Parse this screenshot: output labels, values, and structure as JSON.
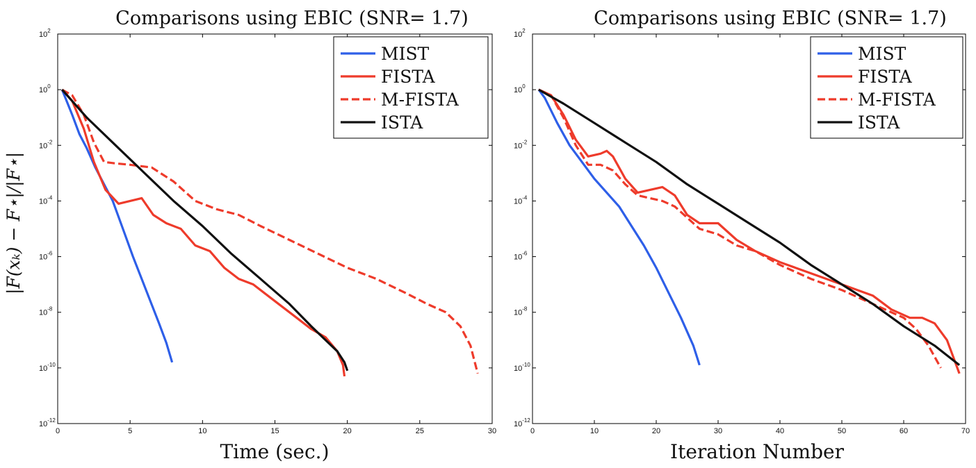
{
  "chart_data": [
    {
      "type": "line",
      "title": "Comparisons using EBIC (SNR= 1.7)",
      "xlabel": "Time (sec.)",
      "ylabel": "|F(x_k) − F*| / |F*|",
      "ylabel_text": "|F(xₖ) − F⋆|/|F⋆|",
      "xlim": [
        0,
        30
      ],
      "ylim_log10": [
        -12,
        2
      ],
      "xticks": [
        0,
        5,
        10,
        15,
        20,
        25,
        30
      ],
      "xtick_labels": [
        "0",
        "5",
        "10",
        "15",
        "20",
        "25",
        "30"
      ],
      "ytick_exponents": [
        2,
        0,
        -2,
        -4,
        -6,
        -8,
        -10,
        -12
      ],
      "ytick_labels": [
        {
          "base": "10",
          "exp": "2"
        },
        {
          "base": "10",
          "exp": "0"
        },
        {
          "base": "10",
          "exp": "-2"
        },
        {
          "base": "10",
          "exp": "-4"
        },
        {
          "base": "10",
          "exp": "-6"
        },
        {
          "base": "10",
          "exp": "-8"
        },
        {
          "base": "10",
          "exp": "-10"
        },
        {
          "base": "10",
          "exp": "-12"
        }
      ],
      "legend": "top-right",
      "series": [
        {
          "name": "MIST",
          "color": "#2e5fe8",
          "style": "solid",
          "x": [
            0.3,
            1.0,
            1.5,
            2.0,
            2.6,
            3.0,
            3.8,
            4.5,
            5.2,
            5.8,
            6.4,
            7.0,
            7.5,
            7.9
          ],
          "log10_y": [
            0,
            -0.9,
            -1.6,
            -2.1,
            -2.8,
            -3.2,
            -4.0,
            -5.0,
            -6.0,
            -6.8,
            -7.6,
            -8.4,
            -9.1,
            -9.8
          ]
        },
        {
          "name": "FISTA",
          "color": "#ee3b2b",
          "style": "solid",
          "x": [
            0.3,
            1.0,
            1.8,
            2.5,
            3.3,
            4.2,
            5.0,
            5.8,
            6.6,
            7.5,
            8.5,
            9.5,
            10.5,
            11.5,
            12.5,
            13.5,
            14.5,
            15.5,
            16.5,
            17.5,
            18.5,
            19.3,
            19.7,
            19.8
          ],
          "log10_y": [
            0,
            -0.4,
            -1.4,
            -2.6,
            -3.6,
            -4.1,
            -4.0,
            -3.9,
            -4.5,
            -4.8,
            -5.0,
            -5.6,
            -5.8,
            -6.4,
            -6.8,
            -7.0,
            -7.4,
            -7.8,
            -8.2,
            -8.6,
            -8.9,
            -9.4,
            -9.9,
            -10.3
          ]
        },
        {
          "name": "M-FISTA",
          "color": "#ee3b2b",
          "style": "dashed",
          "x": [
            0.3,
            1.0,
            1.8,
            2.5,
            3.2,
            4.0,
            5.0,
            6.5,
            8.0,
            9.5,
            11.0,
            12.5,
            14.0,
            16.0,
            18.0,
            20.0,
            22.0,
            24.0,
            25.5,
            26.8,
            27.8,
            28.5,
            29.0
          ],
          "log10_y": [
            0,
            -0.2,
            -0.9,
            -1.9,
            -2.6,
            -2.65,
            -2.7,
            -2.8,
            -3.3,
            -4.0,
            -4.3,
            -4.5,
            -4.9,
            -5.4,
            -5.9,
            -6.4,
            -6.8,
            -7.3,
            -7.7,
            -8.0,
            -8.5,
            -9.2,
            -10.2
          ]
        },
        {
          "name": "ISTA",
          "color": "#111111",
          "style": "solid",
          "x": [
            0.3,
            2.0,
            4.0,
            6.0,
            8.0,
            10.0,
            12.0,
            14.0,
            16.0,
            17.5,
            18.5,
            19.3,
            19.8,
            20.0
          ],
          "log10_y": [
            0,
            -1.0,
            -2.0,
            -3.0,
            -4.0,
            -4.9,
            -5.9,
            -6.8,
            -7.7,
            -8.5,
            -9.0,
            -9.4,
            -9.8,
            -10.1
          ]
        }
      ]
    },
    {
      "type": "line",
      "title": "Comparisons using EBIC (SNR= 1.7)",
      "xlabel": "Iteration Number",
      "ylabel": "",
      "xlim": [
        0,
        70
      ],
      "ylim_log10": [
        -12,
        2
      ],
      "xticks": [
        0,
        10,
        20,
        30,
        40,
        50,
        60,
        70
      ],
      "xtick_labels": [
        "0",
        "10",
        "20",
        "30",
        "40",
        "50",
        "60",
        "70"
      ],
      "ytick_exponents": [
        2,
        0,
        -2,
        -4,
        -6,
        -8,
        -10,
        -12
      ],
      "ytick_labels": [
        {
          "base": "10",
          "exp": "2"
        },
        {
          "base": "10",
          "exp": "0"
        },
        {
          "base": "10",
          "exp": "-2"
        },
        {
          "base": "10",
          "exp": "-4"
        },
        {
          "base": "10",
          "exp": "-6"
        },
        {
          "base": "10",
          "exp": "-8"
        },
        {
          "base": "10",
          "exp": "-10"
        },
        {
          "base": "10",
          "exp": "-12"
        }
      ],
      "legend": "top-right",
      "series": [
        {
          "name": "MIST",
          "color": "#2e5fe8",
          "style": "solid",
          "x": [
            1,
            2,
            4,
            6,
            8,
            10,
            12,
            14,
            16,
            18,
            20,
            22,
            24,
            26,
            27
          ],
          "log10_y": [
            0,
            -0.3,
            -1.2,
            -2.0,
            -2.6,
            -3.2,
            -3.7,
            -4.2,
            -4.9,
            -5.6,
            -6.4,
            -7.3,
            -8.2,
            -9.2,
            -9.9
          ]
        },
        {
          "name": "FISTA",
          "color": "#ee3b2b",
          "style": "solid",
          "x": [
            1,
            3,
            5,
            7,
            9,
            11,
            12,
            13,
            15,
            17,
            19,
            21,
            23,
            25,
            27,
            30,
            33,
            36,
            40,
            45,
            50,
            55,
            58,
            61,
            63,
            65,
            67,
            69
          ],
          "log10_y": [
            0,
            -0.2,
            -0.9,
            -1.8,
            -2.4,
            -2.3,
            -2.2,
            -2.4,
            -3.2,
            -3.7,
            -3.6,
            -3.5,
            -3.8,
            -4.5,
            -4.8,
            -4.8,
            -5.4,
            -5.8,
            -6.2,
            -6.6,
            -7.0,
            -7.4,
            -7.9,
            -8.2,
            -8.2,
            -8.4,
            -9.0,
            -10.2
          ]
        },
        {
          "name": "M-FISTA",
          "color": "#ee3b2b",
          "style": "dashed",
          "x": [
            1,
            3,
            5,
            7,
            9,
            11,
            13,
            15,
            17,
            19,
            21,
            23,
            25,
            27,
            30,
            33,
            36,
            40,
            45,
            50,
            55,
            60,
            62,
            64,
            66
          ],
          "log10_y": [
            0,
            -0.2,
            -1.0,
            -2.0,
            -2.7,
            -2.7,
            -2.9,
            -3.4,
            -3.8,
            -3.9,
            -4.0,
            -4.2,
            -4.6,
            -5.0,
            -5.2,
            -5.6,
            -5.8,
            -6.3,
            -6.8,
            -7.2,
            -7.7,
            -8.2,
            -8.6,
            -9.2,
            -10.0
          ]
        },
        {
          "name": "ISTA",
          "color": "#111111",
          "style": "solid",
          "x": [
            1,
            5,
            10,
            15,
            20,
            25,
            30,
            35,
            40,
            45,
            50,
            55,
            60,
            65,
            69
          ],
          "log10_y": [
            0,
            -0.5,
            -1.2,
            -1.9,
            -2.6,
            -3.4,
            -4.1,
            -4.8,
            -5.5,
            -6.3,
            -7.0,
            -7.7,
            -8.5,
            -9.2,
            -9.9
          ]
        }
      ]
    }
  ]
}
